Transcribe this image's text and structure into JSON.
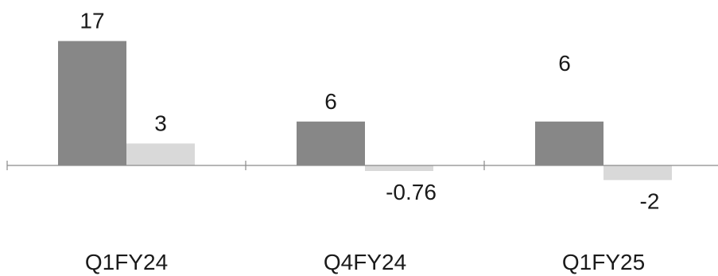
{
  "chart_data": {
    "type": "bar",
    "categories": [
      "Q1FY24",
      "Q4FY24",
      "Q1FY25"
    ],
    "series": [
      {
        "values": [
          17,
          6,
          6
        ],
        "color": "#878787"
      },
      {
        "values": [
          3,
          -0.76,
          -2
        ],
        "color": "#d9d9d9"
      }
    ],
    "data_labels": [
      [
        "17",
        "6",
        "6"
      ],
      [
        "3",
        "-0.76",
        "-2"
      ]
    ],
    "grid": false,
    "legend": "none"
  }
}
